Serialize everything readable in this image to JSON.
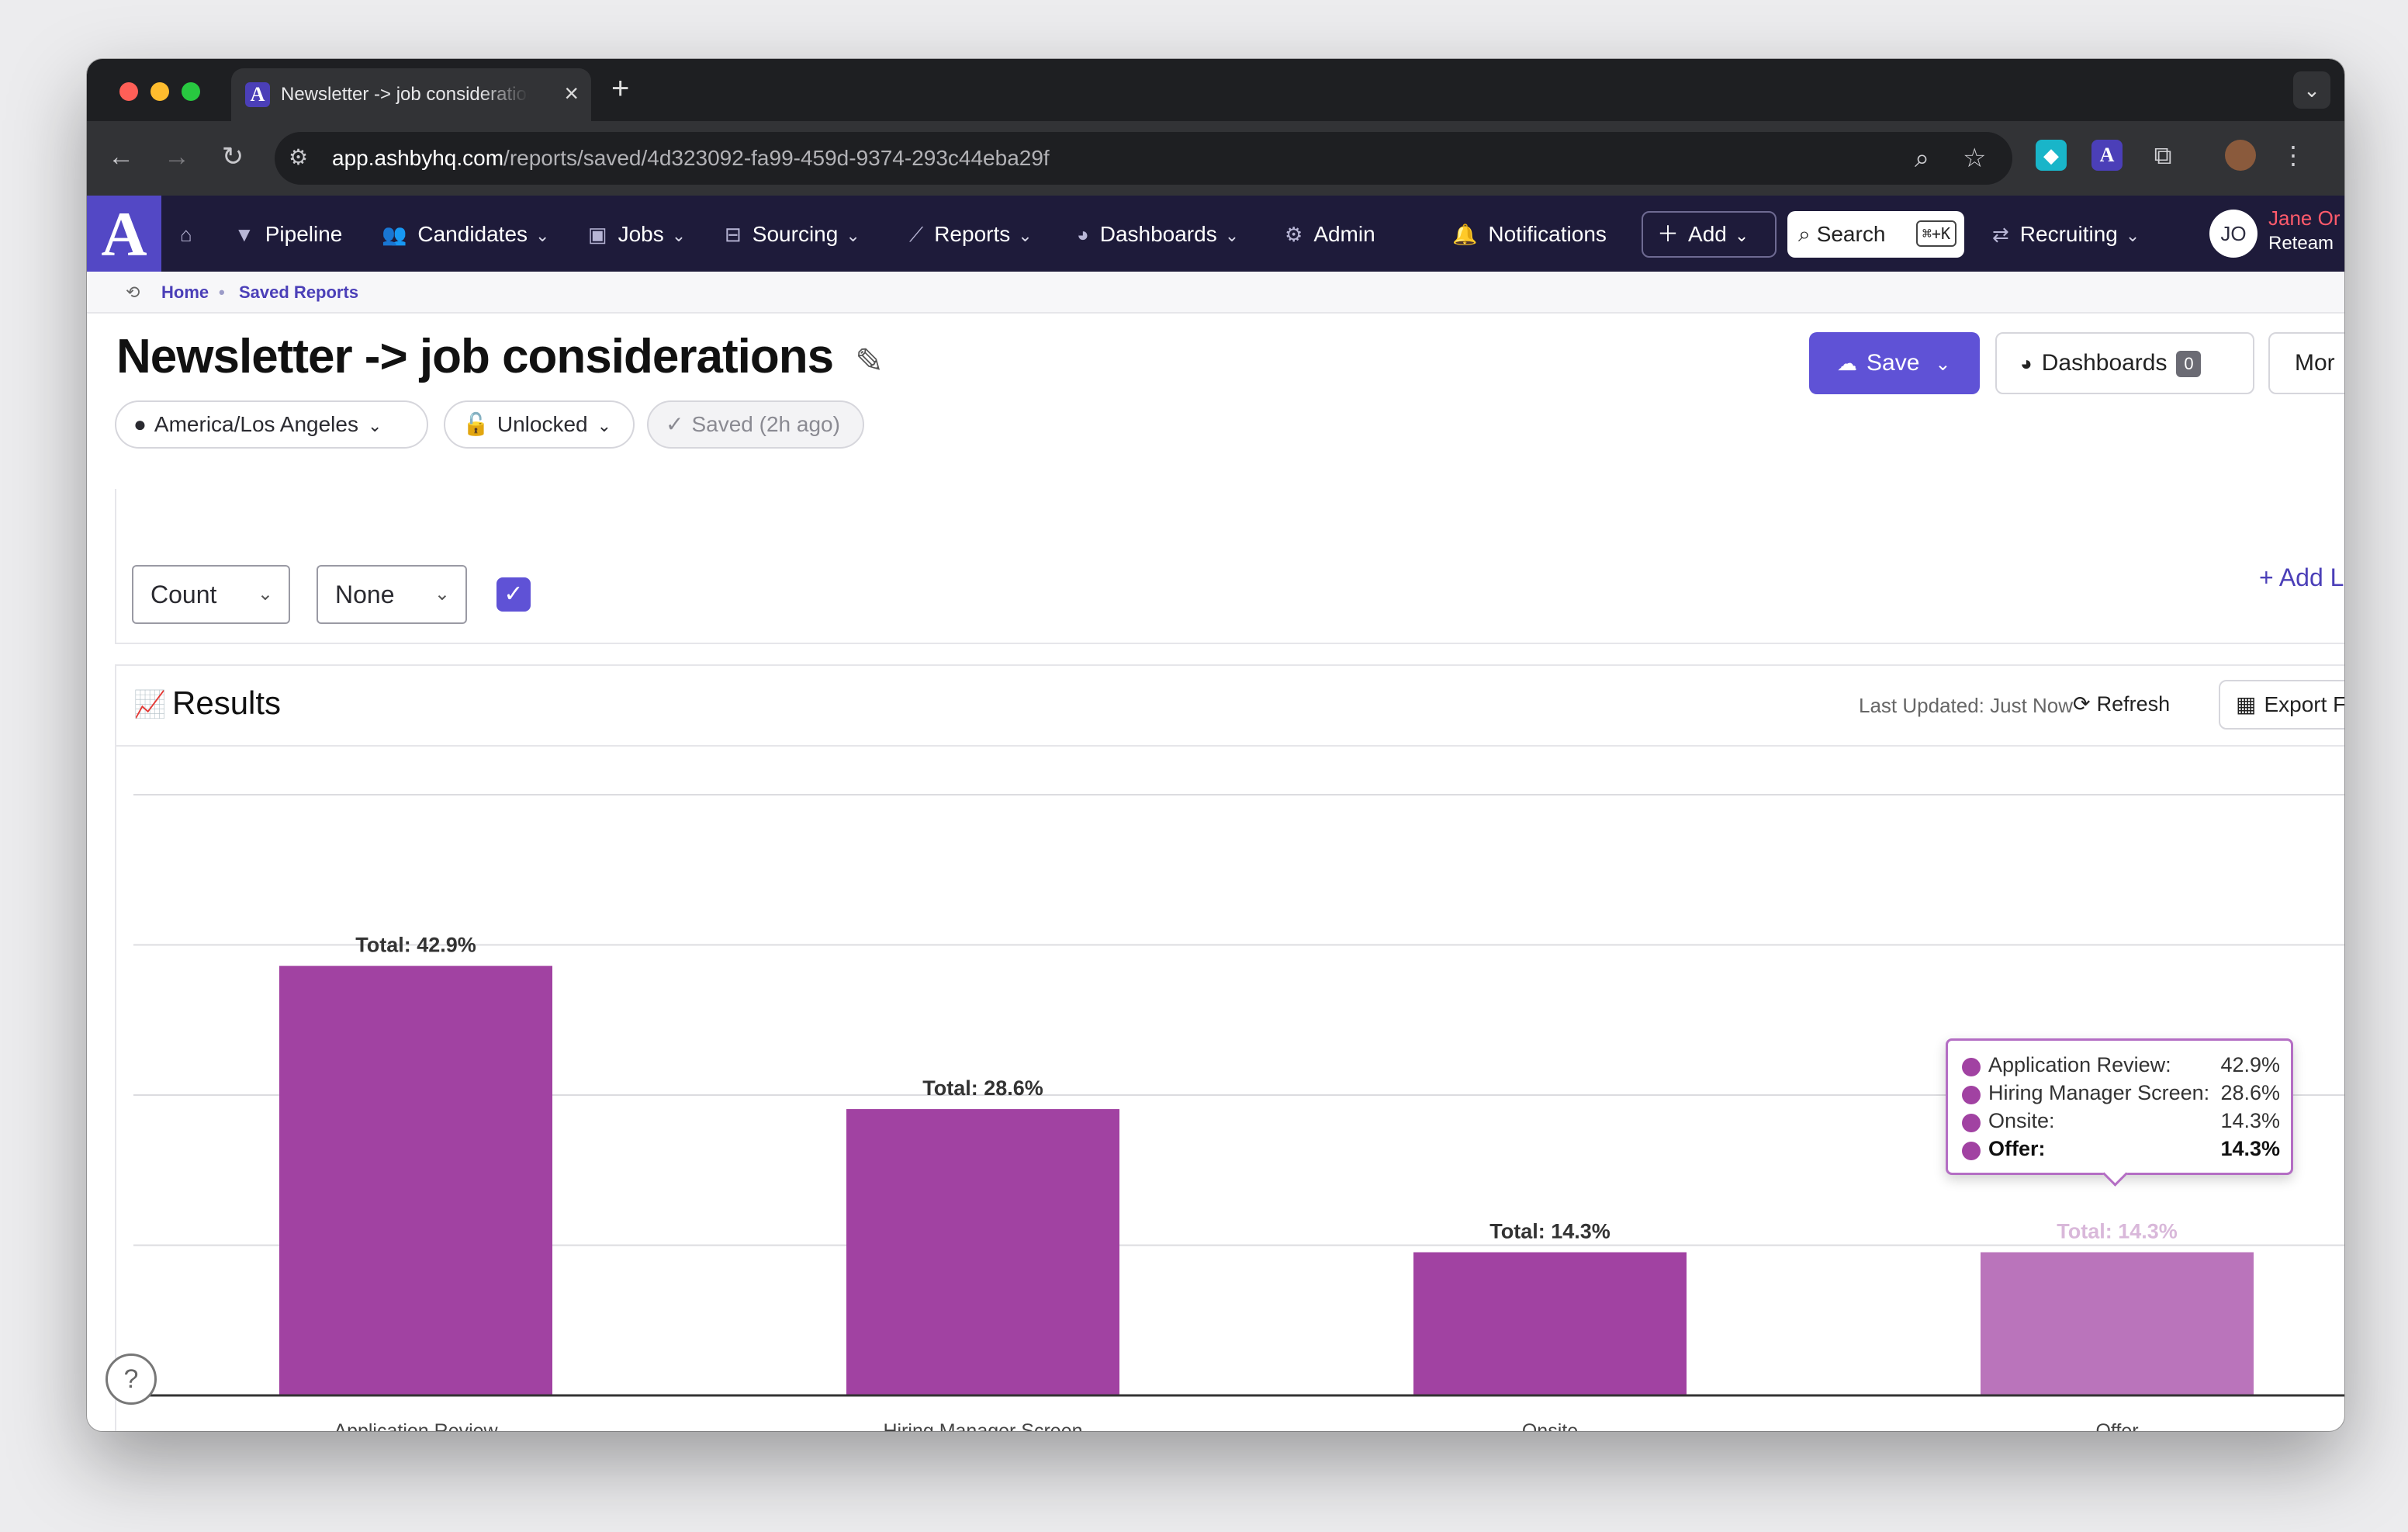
{
  "browser": {
    "tab_title": "Newsletter -> job considerations",
    "url_host": "app.ashbyhq.com",
    "url_path": "/reports/saved/4d323092-fa99-459d-9374-293c44eba29f",
    "favicon_letter": "A"
  },
  "appnav": {
    "logo": "A",
    "items": [
      {
        "label": "Pipeline",
        "icon": "funnel-icon"
      },
      {
        "label": "Candidates",
        "icon": "people-icon"
      },
      {
        "label": "Jobs",
        "icon": "briefcase-icon"
      },
      {
        "label": "Sourcing",
        "icon": "sourcing-icon"
      },
      {
        "label": "Reports",
        "icon": "chart-icon"
      },
      {
        "label": "Dashboards",
        "icon": "gauge-icon"
      },
      {
        "label": "Admin",
        "icon": "gear-icon"
      },
      {
        "label": "Notifications",
        "icon": "bell-icon"
      }
    ],
    "add_label": "Add",
    "search_label": "Search",
    "search_shortcut": "⌘+K",
    "workspace_label": "Recruiting",
    "avatar_initials": "JO",
    "user_name": "Jane Or",
    "user_org": "Reteam"
  },
  "breadcrumb": {
    "home": "Home",
    "current": "Saved Reports"
  },
  "report": {
    "title": "Newsletter -> job considerations",
    "timezone": "America/Los Angeles",
    "lock_state": "Unlocked",
    "saved_state": "Saved (2h ago)",
    "save_label": "Save",
    "dashboards_label": "Dashboards",
    "dashboards_count": "0",
    "more_label": "Mor"
  },
  "controls": {
    "metric": "Count",
    "group": "None",
    "checkbox_checked": true,
    "add_link": "+ Add L"
  },
  "results": {
    "title": "Results",
    "last_updated": "Last Updated: Just Now",
    "refresh_label": "Refresh",
    "export_label": "Export F"
  },
  "chart_data": {
    "type": "bar",
    "categories": [
      "Application Review",
      "Hiring Manager Screen",
      "Onsite",
      "Offer"
    ],
    "values": [
      42.9,
      28.6,
      14.3,
      14.3
    ],
    "data_labels": [
      "Total: 42.9%",
      "Total: 28.6%",
      "Total: 14.3%",
      "Total: 14.3%"
    ],
    "ylim": [
      0,
      60
    ],
    "grid": true,
    "bar_color": "#a142a2",
    "highlight_color": "#ba74bb",
    "highlighted_index": 3
  },
  "tooltip": {
    "rows": [
      {
        "label": "Application Review:",
        "value": "42.9%"
      },
      {
        "label": "Hiring Manager Screen:",
        "value": "28.6%"
      },
      {
        "label": "Onsite:",
        "value": "14.3%"
      },
      {
        "label": "Offer:",
        "value": "14.3%"
      }
    ]
  }
}
